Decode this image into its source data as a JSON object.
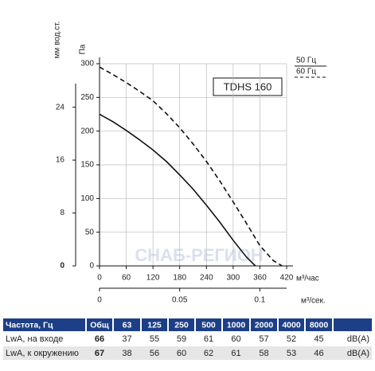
{
  "chart_data": {
    "type": "line",
    "model_label": "TDHS 160",
    "watermark": "СНАБ-РЕГИОН",
    "y_label": "Па",
    "y2_label": "мм вод.ст.",
    "x_label": "м³/час",
    "x2_label": "м³/сек.",
    "xlim": [
      0,
      420
    ],
    "xticks": [
      0,
      60,
      120,
      180,
      240,
      300,
      360,
      420
    ],
    "ylim": [
      0,
      300
    ],
    "yticks": [
      0,
      50,
      100,
      150,
      200,
      250,
      300
    ],
    "y2lim": [
      0,
      30.58
    ],
    "y2ticks": [
      0,
      8,
      16,
      24
    ],
    "x2lim": [
      0,
      0.1167
    ],
    "x2ticks": [
      0,
      0.05,
      0.1
    ],
    "grid": true,
    "series": [
      {
        "name": "50 Гц",
        "color": "#111111",
        "dash": false,
        "x": [
          0,
          30,
          60,
          90,
          120,
          150,
          180,
          210,
          240,
          270,
          300,
          330,
          350
        ],
        "values": [
          225,
          214,
          201,
          187,
          172,
          155,
          135,
          114,
          90,
          65,
          38,
          13,
          0
        ]
      },
      {
        "name": "60 Гц",
        "color": "#111111",
        "dash": true,
        "x": [
          0,
          30,
          60,
          90,
          120,
          150,
          180,
          210,
          240,
          270,
          300,
          330,
          360,
          390,
          410
        ],
        "values": [
          295,
          284,
          272,
          259,
          245,
          226,
          205,
          181,
          155,
          126,
          95,
          63,
          30,
          8,
          0
        ]
      }
    ]
  },
  "table": {
    "header": [
      "Частота, Гц",
      "Общ",
      "63",
      "125",
      "250",
      "500",
      "1000",
      "2000",
      "4000",
      "8000"
    ],
    "rows": [
      [
        "LwA, на входе",
        "66",
        "37",
        "55",
        "59",
        "61",
        "60",
        "57",
        "52",
        "45",
        "dB(A)"
      ],
      [
        "LwA, к окружению",
        "67",
        "38",
        "56",
        "60",
        "62",
        "61",
        "58",
        "53",
        "46",
        "dB(A)"
      ]
    ]
  }
}
